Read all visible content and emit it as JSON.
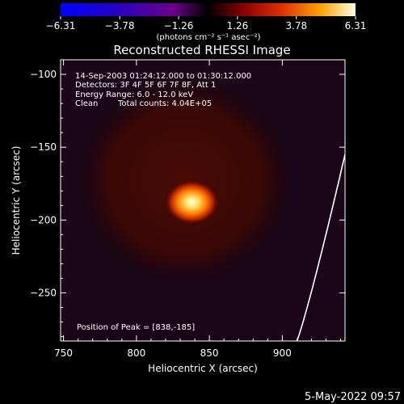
{
  "chart_data": {
    "type": "heatmap",
    "title": "Reconstructed RHESSI Image",
    "xlabel": "Heliocentric X (arcsec)",
    "ylabel": "Heliocentric Y (arcsec)",
    "xlim": [
      748,
      943
    ],
    "ylim": [
      -283,
      -90
    ],
    "x_ticks": [
      750,
      800,
      850,
      900
    ],
    "y_ticks": [
      -100,
      -150,
      -200,
      -250
    ],
    "x_tick_labels": [
      "750",
      "800",
      "850",
      "900"
    ],
    "y_tick_labels": [
      "−100",
      "−150",
      "−200",
      "−250"
    ],
    "colorbar": {
      "range": [
        -6.31,
        6.31
      ],
      "ticks": [
        -6.31,
        -3.78,
        -1.26,
        1.26,
        3.78,
        6.31
      ],
      "tick_labels": [
        "−6.31",
        "−3.78",
        "−1.26",
        "1.26",
        "3.78",
        "6.31"
      ],
      "unit_label": "(photons cm⁻² s⁻¹ asec⁻²)"
    },
    "annotations": [
      "14-Sep-2003 01:24:12.000 to 01:30:12.000",
      "Detectors: 3F 4F 5F 6F 7F 8F, Att 1",
      "Energy Range: 6.0 - 12.0 keV",
      "Clean",
      "Total counts: 4.04E+05"
    ],
    "peak_text": "Position of Peak = [838,-185]",
    "peak": [
      838,
      -185
    ],
    "source_extent_arcsec": 120
  },
  "footer": {
    "timestamp": "5-May-2022 09:57"
  }
}
